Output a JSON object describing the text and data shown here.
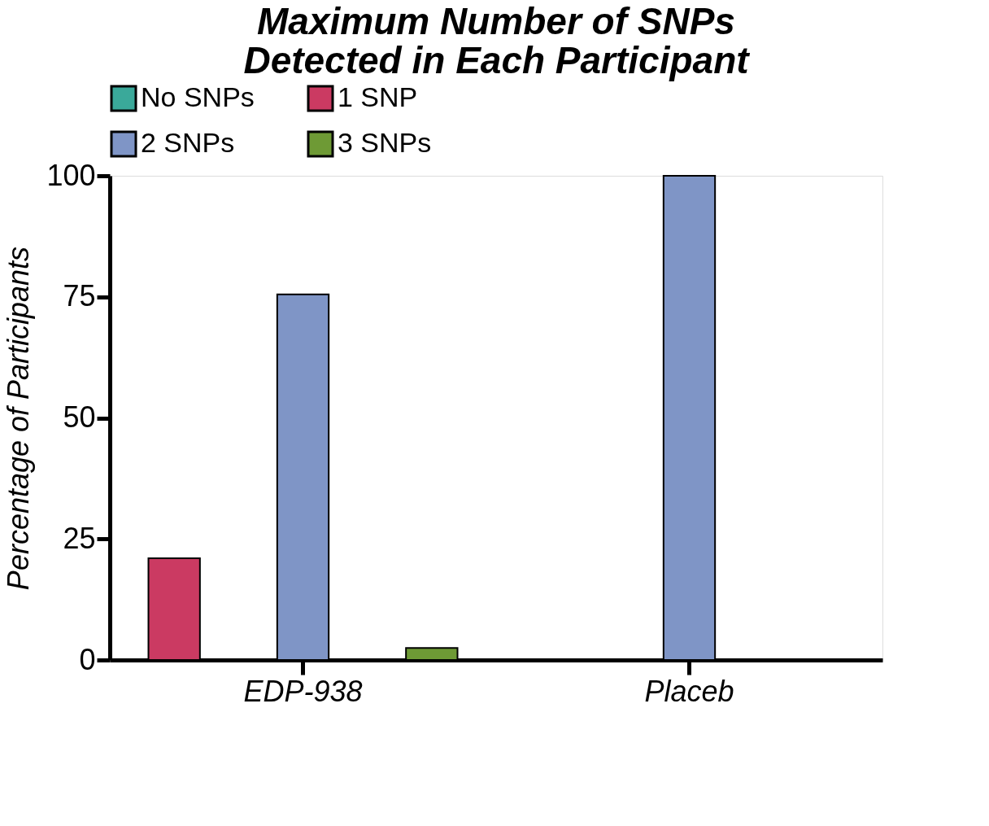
{
  "chart_data": {
    "type": "bar",
    "title": "Maximum Number of SNPs\nDetected in Each Participant",
    "ylabel": "Percentage of Participants",
    "categories": [
      "EDP-938",
      "Placeb"
    ],
    "series": [
      {
        "name": "No SNPs",
        "color": "#3aa99a",
        "values": [
          null,
          null
        ]
      },
      {
        "name": "1 SNP",
        "color": "#cb3a62",
        "values": [
          21,
          null
        ]
      },
      {
        "name": "2 SNPs",
        "color": "#7f95c6",
        "values": [
          75.5,
          100
        ]
      },
      {
        "name": "3 SNPs",
        "color": "#6e9a35",
        "values": [
          2.5,
          null
        ]
      }
    ],
    "ylim": [
      0,
      100
    ],
    "yticks": [
      0,
      25,
      50,
      75,
      100
    ],
    "grid": false,
    "legend": "top"
  }
}
